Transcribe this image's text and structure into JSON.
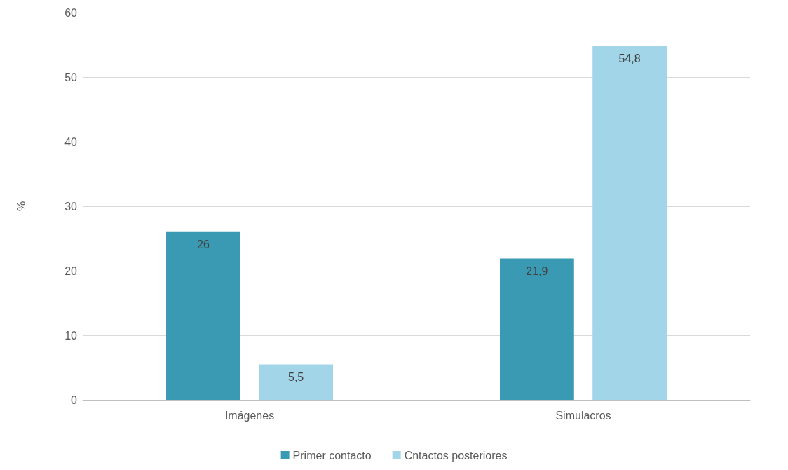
{
  "chart_data": {
    "type": "bar",
    "ylabel": "%",
    "categories": [
      "Imágenes",
      "Simulacros"
    ],
    "series": [
      {
        "name": "Primer contacto",
        "color": "#3a9ab3",
        "values": [
          26,
          21.9
        ],
        "value_labels": [
          "26",
          "21,9"
        ]
      },
      {
        "name": "Cntactos posteriores",
        "color": "#a3d5e8",
        "values": [
          5.5,
          54.8
        ],
        "value_labels": [
          "5,5",
          "54,8"
        ]
      }
    ],
    "ylim": [
      0,
      60
    ],
    "yticks": [
      0,
      10,
      20,
      30,
      40,
      50,
      60
    ],
    "grid": "y",
    "legend": "bottom"
  }
}
